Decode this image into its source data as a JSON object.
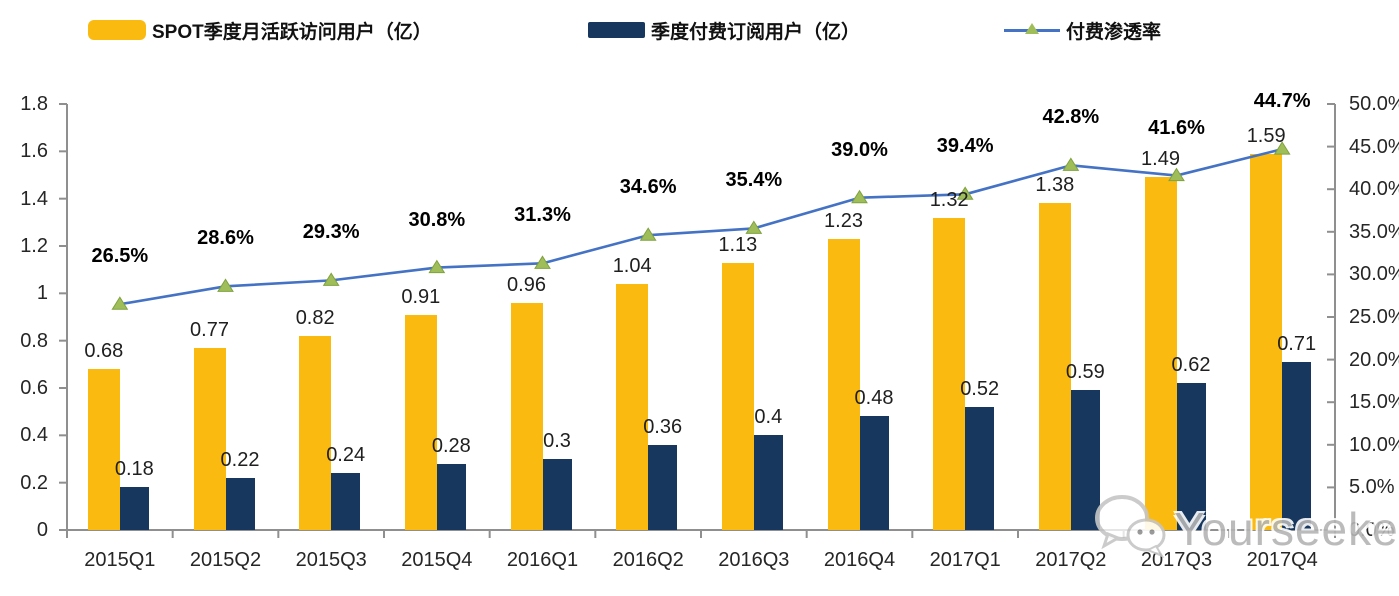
{
  "legend": {
    "items": [
      {
        "label": "SPOT季度月活跃访问用户（亿）",
        "swatch": "bar",
        "color": "#FBBA10"
      },
      {
        "label": "季度付费订阅用户（亿）",
        "swatch": "bar",
        "color": "#17375E"
      },
      {
        "label": "付费渗透率",
        "swatch": "line",
        "color": "#4472C4",
        "marker_color": "#9FBE5A"
      }
    ]
  },
  "chart_data": {
    "type": "bar+line",
    "categories": [
      "2015Q1",
      "2015Q2",
      "2015Q3",
      "2015Q4",
      "2016Q1",
      "2016Q2",
      "2016Q3",
      "2016Q4",
      "2017Q1",
      "2017Q2",
      "2017Q3",
      "2017Q4"
    ],
    "series": [
      {
        "name": "SPOT季度月活跃访问用户（亿）",
        "type": "bar",
        "axis": "left",
        "color": "#FBBA10",
        "values": [
          0.68,
          0.77,
          0.82,
          0.91,
          0.96,
          1.04,
          1.13,
          1.23,
          1.32,
          1.38,
          1.49,
          1.59
        ],
        "labels": [
          "0.68",
          "0.77",
          "0.82",
          "0.91",
          "0.96",
          "1.04",
          "1.13",
          "1.23",
          "1.32",
          "1.38",
          "1.49",
          "1.59"
        ]
      },
      {
        "name": "季度付费订阅用户（亿）",
        "type": "bar",
        "axis": "left",
        "color": "#17375E",
        "values": [
          0.18,
          0.22,
          0.24,
          0.28,
          0.3,
          0.36,
          0.4,
          0.48,
          0.52,
          0.59,
          0.62,
          0.71
        ],
        "labels": [
          "0.18",
          "0.22",
          "0.24",
          "0.28",
          "0.3",
          "0.36",
          "0.4",
          "0.48",
          "0.52",
          "0.59",
          "0.62",
          "0.71"
        ]
      },
      {
        "name": "付费渗透率",
        "type": "line",
        "axis": "right",
        "color": "#4472C4",
        "marker": "triangle",
        "marker_color": "#9FBE5A",
        "marker_edge": "#7FA23E",
        "values": [
          26.5,
          28.6,
          29.3,
          30.8,
          31.3,
          34.6,
          35.4,
          39.0,
          39.4,
          42.8,
          41.6,
          44.7
        ],
        "labels": [
          "26.5%",
          "28.6%",
          "29.3%",
          "30.8%",
          "31.3%",
          "34.6%",
          "35.4%",
          "39.0%",
          "39.4%",
          "42.8%",
          "41.6%",
          "44.7%"
        ]
      }
    ],
    "left_axis": {
      "min": 0,
      "max": 1.8,
      "tick_labels": [
        "1.8",
        "1.6",
        "1.4",
        "1.2",
        "1",
        "0.8",
        "0.6",
        "0.4",
        "0.2",
        "0"
      ]
    },
    "right_axis": {
      "min": 0,
      "max": 50,
      "tick_labels": [
        "50.0%",
        "45.0%",
        "40.0%",
        "35.0%",
        "30.0%",
        "25.0%",
        "20.0%",
        "15.0%",
        "10.0%",
        "5.0%",
        "0.0%"
      ]
    },
    "grid": false,
    "legend_position": "top",
    "axis_color": "#8F8F8F"
  },
  "watermark": {
    "text": "Yourseeker",
    "icon": "wechat-icon"
  }
}
